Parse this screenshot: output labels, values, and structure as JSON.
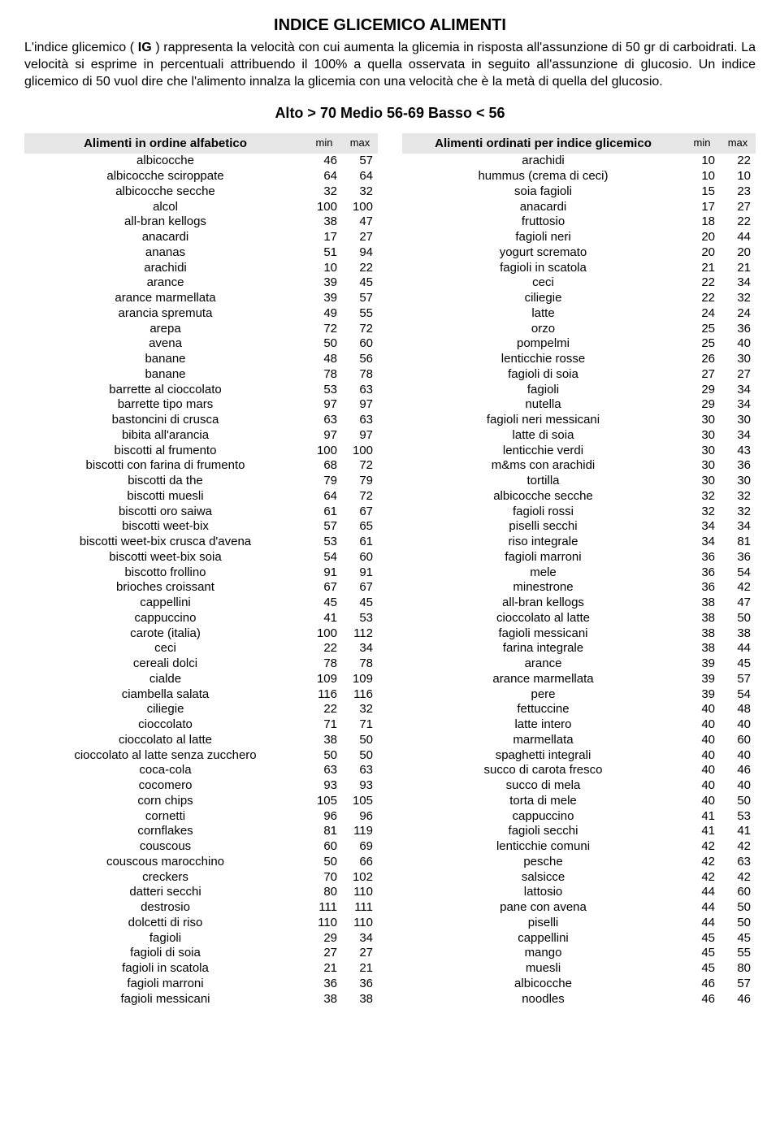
{
  "title": "INDICE GLICEMICO ALIMENTI",
  "intro_pre": "L'indice glicemico ( ",
  "intro_ig": "IG",
  "intro_post": " ) rappresenta la velocità con cui aumenta  la glicemia in risposta all'assunzione di 50 gr di carboidrati. La velocità si esprime in percentuali attribuendo il 100% a quella osservata in seguito all'assunzione di glucosio. Un indice glicemico di 50 vuol dire che l'alimento innalza la glicemia con una velocità che è la metà di quella del glucosio.",
  "legend": "Alto > 70 Medio 56-69 Basso < 56",
  "left": {
    "header": "Alimenti in ordine alfabetico",
    "min_label": "min",
    "max_label": "max",
    "rows": [
      [
        "albicocche",
        46,
        57
      ],
      [
        "albicocche sciroppate",
        64,
        64
      ],
      [
        "albicocche secche",
        32,
        32
      ],
      [
        "alcol",
        100,
        100
      ],
      [
        "all-bran kellogs",
        38,
        47
      ],
      [
        "anacardi",
        17,
        27
      ],
      [
        "ananas",
        51,
        94
      ],
      [
        "arachidi",
        10,
        22
      ],
      [
        "arance",
        39,
        45
      ],
      [
        "arance marmellata",
        39,
        57
      ],
      [
        "arancia spremuta",
        49,
        55
      ],
      [
        "arepa",
        72,
        72
      ],
      [
        "avena",
        50,
        60
      ],
      [
        "banane",
        48,
        56
      ],
      [
        "banane",
        78,
        78
      ],
      [
        "barrette al cioccolato",
        53,
        63
      ],
      [
        "barrette tipo mars",
        97,
        97
      ],
      [
        "bastoncini di crusca",
        63,
        63
      ],
      [
        "bibita all'arancia",
        97,
        97
      ],
      [
        "biscotti al frumento",
        100,
        100
      ],
      [
        "biscotti con farina di frumento",
        68,
        72
      ],
      [
        "biscotti da the",
        79,
        79
      ],
      [
        "biscotti muesli",
        64,
        72
      ],
      [
        "biscotti oro saiwa",
        61,
        67
      ],
      [
        "biscotti weet-bix",
        57,
        65
      ],
      [
        "biscotti weet-bix crusca d'avena",
        53,
        61
      ],
      [
        "biscotti weet-bix soia",
        54,
        60
      ],
      [
        "biscotto frollino",
        91,
        91
      ],
      [
        "brioches croissant",
        67,
        67
      ],
      [
        "cappellini",
        45,
        45
      ],
      [
        "cappuccino",
        41,
        53
      ],
      [
        "carote (italia)",
        100,
        112
      ],
      [
        "ceci",
        22,
        34
      ],
      [
        "cereali dolci",
        78,
        78
      ],
      [
        "cialde",
        109,
        109
      ],
      [
        "ciambella salata",
        116,
        116
      ],
      [
        "ciliegie",
        22,
        32
      ],
      [
        "cioccolato",
        71,
        71
      ],
      [
        "cioccolato al latte",
        38,
        50
      ],
      [
        "cioccolato al latte senza zucchero",
        50,
        50
      ],
      [
        "coca-cola",
        63,
        63
      ],
      [
        "cocomero",
        93,
        93
      ],
      [
        "corn chips",
        105,
        105
      ],
      [
        "cornetti",
        96,
        96
      ],
      [
        "cornflakes",
        81,
        119
      ],
      [
        "couscous",
        60,
        69
      ],
      [
        "couscous marocchino",
        50,
        66
      ],
      [
        "creckers",
        70,
        102
      ],
      [
        "datteri secchi",
        80,
        110
      ],
      [
        "destrosio",
        111,
        111
      ],
      [
        "dolcetti di riso",
        110,
        110
      ],
      [
        "fagioli",
        29,
        34
      ],
      [
        "fagioli di soia",
        27,
        27
      ],
      [
        "fagioli in scatola",
        21,
        21
      ],
      [
        "fagioli marroni",
        36,
        36
      ],
      [
        "fagioli messicani",
        38,
        38
      ]
    ]
  },
  "right": {
    "header": "Alimenti ordinati per indice glicemico",
    "min_label": "min",
    "max_label": "max",
    "rows": [
      [
        "arachidi",
        10,
        22
      ],
      [
        "hummus (crema di ceci)",
        10,
        10
      ],
      [
        "soia fagioli",
        15,
        23
      ],
      [
        "anacardi",
        17,
        27
      ],
      [
        "fruttosio",
        18,
        22
      ],
      [
        "fagioli neri",
        20,
        44
      ],
      [
        "yogurt scremato",
        20,
        20
      ],
      [
        "fagioli in scatola",
        21,
        21
      ],
      [
        "ceci",
        22,
        34
      ],
      [
        "ciliegie",
        22,
        32
      ],
      [
        "latte",
        24,
        24
      ],
      [
        "orzo",
        25,
        36
      ],
      [
        "pompelmi",
        25,
        40
      ],
      [
        "lenticchie rosse",
        26,
        30
      ],
      [
        "fagioli di soia",
        27,
        27
      ],
      [
        "fagioli",
        29,
        34
      ],
      [
        "nutella",
        29,
        34
      ],
      [
        "fagioli neri messicani",
        30,
        30
      ],
      [
        "latte di soia",
        30,
        34
      ],
      [
        "lenticchie verdi",
        30,
        43
      ],
      [
        "m&ms con arachidi",
        30,
        36
      ],
      [
        "tortilla",
        30,
        30
      ],
      [
        "albicocche secche",
        32,
        32
      ],
      [
        "fagioli rossi",
        32,
        32
      ],
      [
        "piselli secchi",
        34,
        34
      ],
      [
        "riso integrale",
        34,
        81
      ],
      [
        "fagioli marroni",
        36,
        36
      ],
      [
        "mele",
        36,
        54
      ],
      [
        "minestrone",
        36,
        42
      ],
      [
        "all-bran kellogs",
        38,
        47
      ],
      [
        "cioccolato al latte",
        38,
        50
      ],
      [
        "fagioli messicani",
        38,
        38
      ],
      [
        "farina integrale",
        38,
        44
      ],
      [
        "arance",
        39,
        45
      ],
      [
        "arance marmellata",
        39,
        57
      ],
      [
        "pere",
        39,
        54
      ],
      [
        "fettuccine",
        40,
        48
      ],
      [
        "latte intero",
        40,
        40
      ],
      [
        "marmellata",
        40,
        60
      ],
      [
        "spaghetti integrali",
        40,
        40
      ],
      [
        "succo di carota fresco",
        40,
        46
      ],
      [
        "succo di mela",
        40,
        40
      ],
      [
        "torta di mele",
        40,
        50
      ],
      [
        "cappuccino",
        41,
        53
      ],
      [
        "fagioli secchi",
        41,
        41
      ],
      [
        "lenticchie comuni",
        42,
        42
      ],
      [
        "pesche",
        42,
        63
      ],
      [
        "salsicce",
        42,
        42
      ],
      [
        "lattosio",
        44,
        60
      ],
      [
        "pane con avena",
        44,
        50
      ],
      [
        "piselli",
        44,
        50
      ],
      [
        "cappellini",
        45,
        45
      ],
      [
        "mango",
        45,
        55
      ],
      [
        "muesli",
        45,
        80
      ],
      [
        "albicocche",
        46,
        57
      ],
      [
        "noodles",
        46,
        46
      ]
    ]
  }
}
